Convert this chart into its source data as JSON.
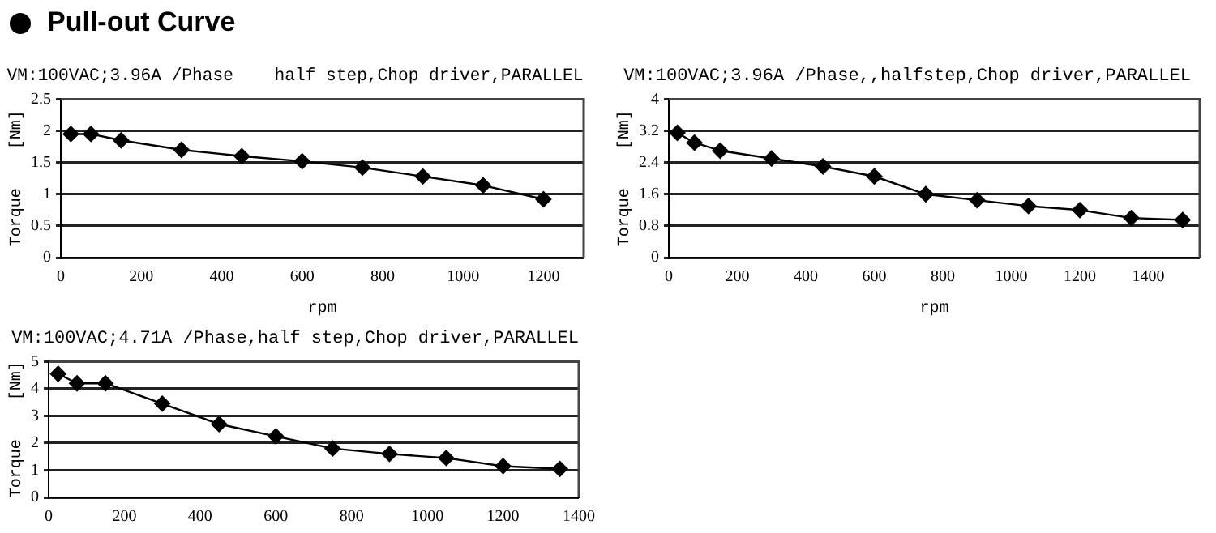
{
  "chart_data": [
    {
      "type": "line",
      "title": "Pull-out Curve",
      "subtitle": "VM:100VAC;3.96A /Phase    half step,Chop driver,PARALLEL",
      "xlabel": "rpm",
      "ylabel": "Torque    [Nm]",
      "x": [
        25,
        75,
        150,
        300,
        450,
        600,
        750,
        900,
        1050,
        1200
      ],
      "series": [
        {
          "color": "#000000",
          "values": [
            1.95,
            1.95,
            1.85,
            1.7,
            1.6,
            1.52,
            1.42,
            1.28,
            1.14,
            0.92
          ]
        }
      ],
      "xlim": [
        0,
        1300
      ],
      "xticks": [
        0,
        200,
        400,
        600,
        800,
        1000,
        1200
      ],
      "ylim": [
        0,
        2.5
      ],
      "yticks": [
        0,
        0.5,
        1,
        1.5,
        2,
        2.5
      ],
      "grid": "y",
      "marker": "diamond",
      "line_style": "solid",
      "legend": false
    },
    {
      "type": "line",
      "subtitle": "VM:100VAC;3.96A /Phase,,halfstep,Chop driver,PARALLEL",
      "xlabel": "rpm",
      "ylabel": "Torque    [Nm]",
      "x": [
        25,
        75,
        150,
        300,
        450,
        600,
        750,
        900,
        1050,
        1200,
        1350,
        1500
      ],
      "series": [
        {
          "color": "#000000",
          "values": [
            3.15,
            2.9,
            2.7,
            2.5,
            2.3,
            2.05,
            1.6,
            1.45,
            1.3,
            1.2,
            1.0,
            0.95
          ]
        }
      ],
      "xlim": [
        0,
        1550
      ],
      "xticks": [
        0,
        200,
        400,
        600,
        800,
        1000,
        1200,
        1400
      ],
      "ylim": [
        0,
        4
      ],
      "yticks": [
        0,
        0.8,
        1.6,
        2.4,
        3.2,
        4
      ],
      "grid": "y",
      "marker": "diamond",
      "line_style": "solid",
      "legend": false
    },
    {
      "type": "line",
      "subtitle": "VM:100VAC;4.71A /Phase,half step,Chop driver,PARALLEL",
      "ylabel": "Torque    [Nm]",
      "x": [
        25,
        75,
        150,
        300,
        450,
        600,
        750,
        900,
        1050,
        1200,
        1350
      ],
      "series": [
        {
          "color": "#000000",
          "values": [
            4.55,
            4.2,
            4.2,
            3.45,
            2.7,
            2.25,
            1.8,
            1.6,
            1.45,
            1.15,
            1.05
          ]
        }
      ],
      "xlim": [
        0,
        1400
      ],
      "xticks": [
        0,
        200,
        400,
        600,
        800,
        1000,
        1200,
        1400
      ],
      "ylim": [
        0,
        5
      ],
      "yticks": [
        0,
        1,
        2,
        3,
        4,
        5
      ],
      "grid": "y",
      "marker": "diamond",
      "line_style": "solid",
      "legend": false
    }
  ]
}
